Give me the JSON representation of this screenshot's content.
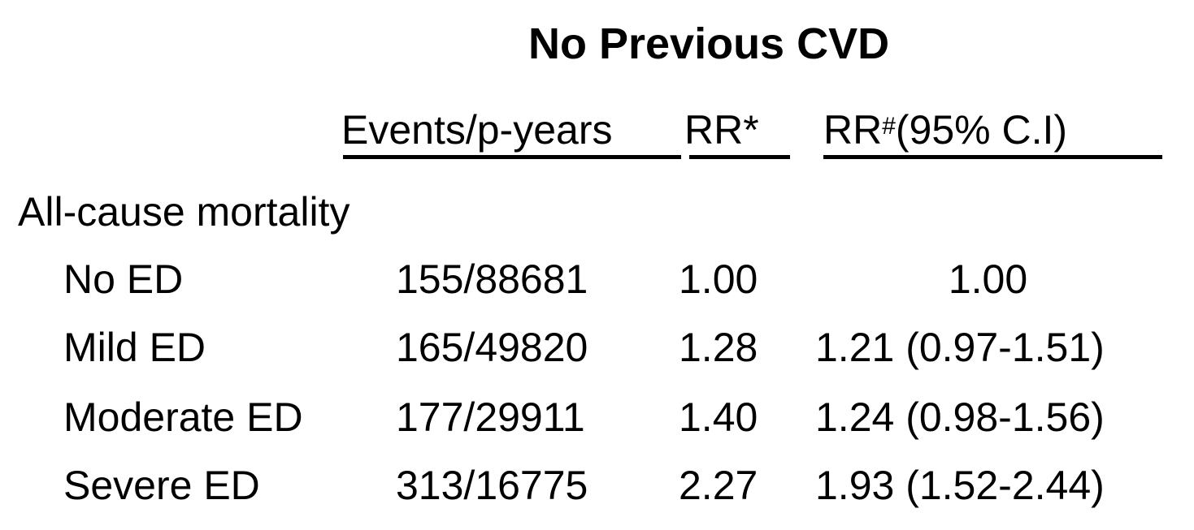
{
  "title": "No Previous CVD",
  "headers": {
    "events": "Events/p-years",
    "rr": "RR*",
    "rr_adj_base": "RR",
    "rr_adj_sup": "#",
    "rr_adj_tail": "(95% C.I)"
  },
  "section": "All-cause mortality",
  "rows": [
    {
      "label": "No ED",
      "events": "155/88681",
      "rr": "1.00",
      "ci": "1.00"
    },
    {
      "label": "Mild ED",
      "events": "165/49820",
      "rr": "1.28",
      "ci": "1.21 (0.97-1.51)"
    },
    {
      "label": "Moderate ED",
      "events": "177/29911",
      "rr": "1.40",
      "ci": "1.24 (0.98-1.56)"
    },
    {
      "label": "Severe ED",
      "events": "313/16775",
      "rr": "2.27",
      "ci": "1.93 (1.52-2.44)"
    }
  ]
}
